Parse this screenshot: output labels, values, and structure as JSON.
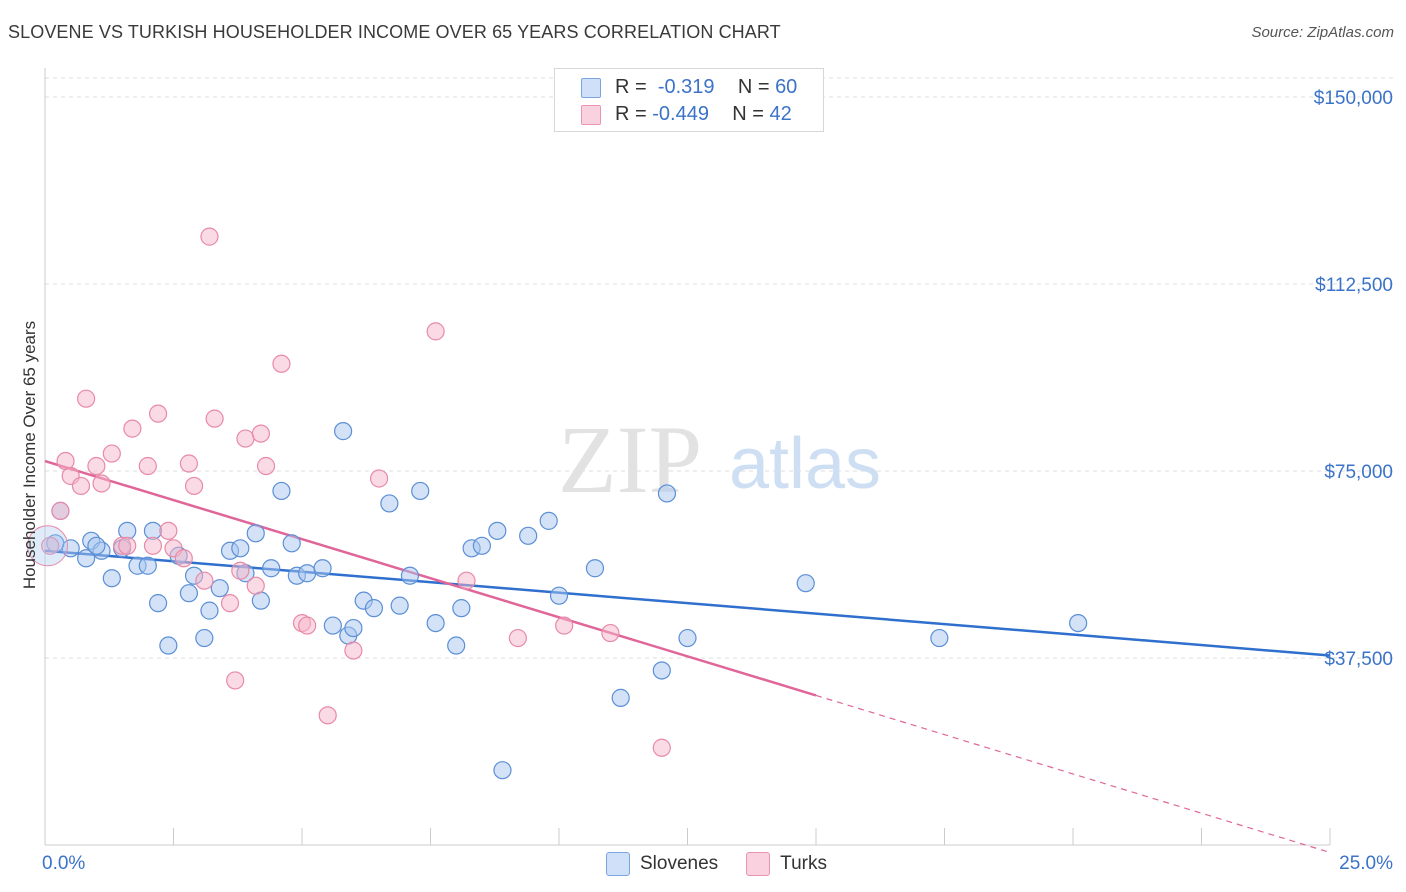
{
  "title": "SLOVENE VS TURKISH HOUSEHOLDER INCOME OVER 65 YEARS CORRELATION CHART",
  "source": "Source: ZipAtlas.com",
  "watermark": {
    "zip": "ZIP",
    "atlas": "atlas"
  },
  "legend": {
    "rows": [
      {
        "r_label": "R =",
        "r_value": "-0.319",
        "n_label": "N =",
        "n_value": "60",
        "color": "#a7c6f0"
      },
      {
        "r_label": "R =",
        "r_value": "-0.449",
        "n_label": "N =",
        "n_value": "42",
        "color": "#f5b5c9"
      }
    ]
  },
  "chart_data": {
    "type": "scatter",
    "xlabel": "",
    "ylabel": "Householder Income Over 65 years",
    "xlim": [
      0,
      25
    ],
    "ylim": [
      0,
      150000
    ],
    "x_tick_labels": [
      "0.0%",
      "25.0%"
    ],
    "y_ticks": [
      37500,
      75000,
      112500,
      150000
    ],
    "y_tick_labels": [
      "$37,500",
      "$75,000",
      "$112,500",
      "$150,000"
    ],
    "grid": "horizontal dashed",
    "legend_position": "bottom-center",
    "series": [
      {
        "name": "Slovenes",
        "color": "#5b8fd6",
        "fill": "#a7c6f0",
        "trend_color": "#2f6fce",
        "trend": {
          "x0": 0.0,
          "y0": 59000,
          "x1": 25.0,
          "y1": 38000
        },
        "points": [
          [
            0.3,
            67000
          ],
          [
            0.5,
            59500
          ],
          [
            0.8,
            57500
          ],
          [
            0.9,
            61000
          ],
          [
            1.1,
            59000
          ],
          [
            1.3,
            53500
          ],
          [
            1.5,
            59500
          ],
          [
            1.6,
            63000
          ],
          [
            1.8,
            56000
          ],
          [
            2.0,
            56000
          ],
          [
            2.1,
            63000
          ],
          [
            2.2,
            48500
          ],
          [
            2.4,
            40000
          ],
          [
            2.6,
            58000
          ],
          [
            2.8,
            50500
          ],
          [
            2.9,
            54000
          ],
          [
            3.1,
            41500
          ],
          [
            3.2,
            47000
          ],
          [
            3.4,
            51500
          ],
          [
            3.6,
            59000
          ],
          [
            3.8,
            59500
          ],
          [
            3.9,
            54500
          ],
          [
            4.1,
            62500
          ],
          [
            4.2,
            49000
          ],
          [
            4.4,
            55500
          ],
          [
            4.6,
            71000
          ],
          [
            4.8,
            60500
          ],
          [
            4.9,
            54000
          ],
          [
            5.1,
            54500
          ],
          [
            5.4,
            55500
          ],
          [
            5.6,
            44000
          ],
          [
            5.8,
            83000
          ],
          [
            5.9,
            42000
          ],
          [
            6.0,
            43500
          ],
          [
            6.2,
            49000
          ],
          [
            6.4,
            47500
          ],
          [
            6.7,
            68500
          ],
          [
            6.9,
            48000
          ],
          [
            7.1,
            54000
          ],
          [
            7.3,
            71000
          ],
          [
            7.6,
            44500
          ],
          [
            8.0,
            40000
          ],
          [
            8.1,
            47500
          ],
          [
            8.3,
            59500
          ],
          [
            8.5,
            60000
          ],
          [
            8.8,
            63000
          ],
          [
            8.9,
            15000
          ],
          [
            9.4,
            62000
          ],
          [
            9.8,
            65000
          ],
          [
            10.0,
            50000
          ],
          [
            10.7,
            55500
          ],
          [
            11.2,
            29500
          ],
          [
            12.0,
            35000
          ],
          [
            12.1,
            70500
          ],
          [
            12.5,
            41500
          ],
          [
            14.8,
            52500
          ],
          [
            17.4,
            41500
          ],
          [
            20.1,
            44500
          ],
          [
            0.2,
            60500
          ],
          [
            1.0,
            60000
          ]
        ]
      },
      {
        "name": "Turks",
        "color": "#e88aa8",
        "fill": "#f5b5c9",
        "trend_color": "#e0669a",
        "trend": {
          "x0": 0.0,
          "y0": 77000,
          "x1": 15.0,
          "y1": 30000
        },
        "trend_dashed": {
          "x0": 15.0,
          "y0": 30000,
          "x1": 25.0,
          "y1": -1500
        },
        "points": [
          [
            0.1,
            60000
          ],
          [
            0.3,
            67000
          ],
          [
            0.4,
            77000
          ],
          [
            0.5,
            74000
          ],
          [
            0.7,
            72000
          ],
          [
            0.8,
            89500
          ],
          [
            1.0,
            76000
          ],
          [
            1.1,
            72500
          ],
          [
            1.3,
            78500
          ],
          [
            1.5,
            60000
          ],
          [
            1.6,
            60000
          ],
          [
            1.7,
            83500
          ],
          [
            2.0,
            76000
          ],
          [
            2.2,
            86500
          ],
          [
            2.4,
            63000
          ],
          [
            2.5,
            59500
          ],
          [
            2.7,
            57500
          ],
          [
            2.8,
            76500
          ],
          [
            2.9,
            72000
          ],
          [
            3.1,
            53000
          ],
          [
            3.2,
            122000
          ],
          [
            3.3,
            85500
          ],
          [
            3.6,
            48500
          ],
          [
            3.7,
            33000
          ],
          [
            3.8,
            55000
          ],
          [
            3.9,
            81500
          ],
          [
            4.1,
            52000
          ],
          [
            4.2,
            82500
          ],
          [
            4.3,
            76000
          ],
          [
            4.6,
            96500
          ],
          [
            5.0,
            44500
          ],
          [
            5.1,
            44000
          ],
          [
            5.5,
            26000
          ],
          [
            6.0,
            39000
          ],
          [
            6.5,
            73500
          ],
          [
            7.6,
            103000
          ],
          [
            8.2,
            53000
          ],
          [
            9.2,
            41500
          ],
          [
            10.1,
            44000
          ],
          [
            11.0,
            42500
          ],
          [
            12.0,
            19500
          ],
          [
            2.1,
            60000
          ]
        ]
      }
    ]
  }
}
